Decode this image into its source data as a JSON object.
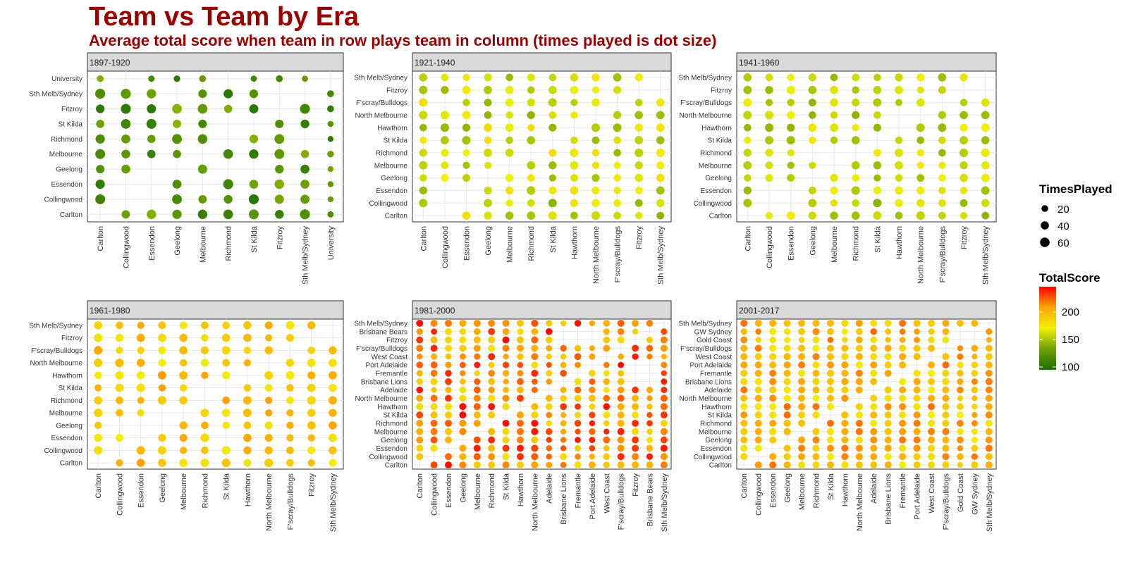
{
  "title": "Team vs Team by Era",
  "subtitle": "Average total score when team in row plays team in column (times played is dot size)",
  "legend": {
    "size_title": "TimesPlayed",
    "size_labels": [
      "20",
      "40",
      "60"
    ],
    "color_title": "TotalScore",
    "color_labels": [
      "200",
      "150",
      "100"
    ],
    "color_stops": [
      "#1a6f00",
      "#6da000",
      "#f0f000",
      "#ffa500",
      "#ff0000"
    ]
  },
  "chart_data": [
    {
      "type": "scatter",
      "panel": "1897-1920",
      "x": [
        "Carlton",
        "Collingwood",
        "Essendon",
        "Geelong",
        "Melbourne",
        "Richmond",
        "St Kilda",
        "Fitzroy",
        "Sth Melb/Sydney",
        "University"
      ],
      "y": [
        "Carlton",
        "Collingwood",
        "Essendon",
        "Geelong",
        "Melbourne",
        "Richmond",
        "St Kilda",
        "Fitzroy",
        "Sth Melb/Sydney",
        "University"
      ],
      "score_base": 112,
      "size_base": 50,
      "missing": [
        [
          0,
          0
        ],
        [
          1,
          1
        ],
        [
          2,
          2
        ],
        [
          3,
          3
        ],
        [
          4,
          4
        ],
        [
          5,
          5
        ],
        [
          6,
          6
        ],
        [
          7,
          7
        ],
        [
          8,
          8
        ],
        [
          9,
          9
        ],
        [
          1,
          2
        ],
        [
          2,
          3
        ],
        [
          5,
          6
        ],
        [
          5,
          3
        ],
        [
          5,
          9
        ],
        [
          1,
          9
        ],
        [
          6,
          3
        ],
        [
          8,
          5
        ],
        [
          4,
          2
        ],
        [
          3,
          8
        ],
        [
          7,
          8
        ],
        [
          2,
          1
        ]
      ],
      "small_cols": [
        9
      ],
      "small_rows": [
        9
      ],
      "color_range": [
        105,
        140
      ]
    },
    {
      "type": "scatter",
      "panel": "1921-1940",
      "x": [
        "Carlton",
        "Collingwood",
        "Essendon",
        "Geelong",
        "Melbourne",
        "Richmond",
        "St Kilda",
        "Hawthorn",
        "North Melbourne",
        "F'scray/Bulldogs",
        "Fitzroy",
        "Sth Melb/Sydney"
      ],
      "y": [
        "Carlton",
        "Collingwood",
        "Essendon",
        "Geelong",
        "Melbourne",
        "Richmond",
        "St Kilda",
        "Hawthorn",
        "North Melbourne",
        "F'scray/Bulldogs",
        "Fitzroy",
        "Sth Melb/Sydney"
      ],
      "score_base": 160,
      "size_base": 30,
      "missing": [
        [
          0,
          0
        ],
        [
          1,
          1
        ],
        [
          2,
          2
        ],
        [
          3,
          3
        ],
        [
          4,
          4
        ],
        [
          5,
          5
        ],
        [
          6,
          6
        ],
        [
          7,
          7
        ],
        [
          8,
          8
        ],
        [
          9,
          9
        ],
        [
          10,
          10
        ],
        [
          11,
          11
        ],
        [
          11,
          10
        ],
        [
          1,
          9
        ],
        [
          1,
          0
        ],
        [
          1,
          2
        ],
        [
          2,
          1
        ]
      ],
      "small_cols": [],
      "small_rows": [],
      "color_range": [
        140,
        175
      ]
    },
    {
      "type": "scatter",
      "panel": "1941-1960",
      "x": [
        "Carlton",
        "Collingwood",
        "Essendon",
        "Geelong",
        "Melbourne",
        "Richmond",
        "St Kilda",
        "Hawthorn",
        "North Melbourne",
        "F'scray/Bulldogs",
        "Fitzroy",
        "Sth Melb/Sydney"
      ],
      "y": [
        "Carlton",
        "Collingwood",
        "Essendon",
        "Geelong",
        "Melbourne",
        "Richmond",
        "St Kilda",
        "Hawthorn",
        "North Melbourne",
        "F'scray/Bulldogs",
        "Fitzroy",
        "Sth Melb/Sydney"
      ],
      "score_base": 160,
      "size_base": 30,
      "missing": [
        [
          0,
          0
        ],
        [
          1,
          1
        ],
        [
          2,
          2
        ],
        [
          3,
          3
        ],
        [
          4,
          4
        ],
        [
          5,
          5
        ],
        [
          6,
          6
        ],
        [
          7,
          7
        ],
        [
          8,
          8
        ],
        [
          9,
          9
        ],
        [
          10,
          10
        ],
        [
          11,
          11
        ],
        [
          11,
          10
        ],
        [
          4,
          5
        ],
        [
          1,
          2
        ],
        [
          2,
          1
        ],
        [
          3,
          5
        ],
        [
          7,
          8
        ]
      ],
      "small_cols": [],
      "small_rows": [],
      "color_range": [
        140,
        170
      ]
    },
    {
      "type": "scatter",
      "panel": "1961-1980",
      "x": [
        "Carlton",
        "Collingwood",
        "Essendon",
        "Geelong",
        "Melbourne",
        "Richmond",
        "St Kilda",
        "Hawthorn",
        "North Melbourne",
        "F'scray/Bulldogs",
        "Fitzroy",
        "Sth Melb/Sydney"
      ],
      "y": [
        "Carlton",
        "Collingwood",
        "Essendon",
        "Geelong",
        "Melbourne",
        "Richmond",
        "St Kilda",
        "Hawthorn",
        "North Melbourne",
        "F'scray/Bulldogs",
        "Fitzroy",
        "Sth Melb/Sydney"
      ],
      "score_base": 185,
      "size_base": 30,
      "missing": [
        [
          0,
          0
        ],
        [
          1,
          1
        ],
        [
          2,
          2
        ],
        [
          3,
          3
        ],
        [
          4,
          4
        ],
        [
          5,
          5
        ],
        [
          6,
          6
        ],
        [
          7,
          7
        ],
        [
          8,
          8
        ],
        [
          9,
          9
        ],
        [
          10,
          10
        ],
        [
          11,
          11
        ],
        [
          11,
          10
        ],
        [
          1,
          3
        ],
        [
          2,
          3
        ],
        [
          5,
          6
        ],
        [
          3,
          4
        ],
        [
          6,
          2
        ]
      ],
      "small_cols": [],
      "small_rows": [],
      "color_range": [
        165,
        200
      ]
    },
    {
      "type": "scatter",
      "panel": "1981-2000",
      "x": [
        "Carlton",
        "Collingwood",
        "Essendon",
        "Geelong",
        "Melbourne",
        "Richmond",
        "St Kilda",
        "Hawthorn",
        "North Melbourne",
        "Adelaide",
        "Brisbane Lions",
        "Fremantle",
        "Port Adelaide",
        "West Coast",
        "F'scray/Bulldogs",
        "Fitzroy",
        "Brisbane Bears",
        "Sth Melb/Sydney"
      ],
      "y": [
        "Carlton",
        "Collingwood",
        "Essendon",
        "Geelong",
        "Melbourne",
        "Richmond",
        "St Kilda",
        "Hawthorn",
        "North Melbourne",
        "Adelaide",
        "Brisbane Lions",
        "Fremantle",
        "Port Adelaide",
        "West Coast",
        "F'scray/Bulldogs",
        "Fitzroy",
        "Brisbane Bears",
        "Sth Melb/Sydney"
      ],
      "score_base": 200,
      "size_base": 40,
      "missing": [
        [
          0,
          0
        ],
        [
          1,
          1
        ],
        [
          2,
          2
        ],
        [
          3,
          3
        ],
        [
          4,
          4
        ],
        [
          5,
          5
        ],
        [
          6,
          6
        ],
        [
          7,
          7
        ],
        [
          8,
          8
        ],
        [
          9,
          9
        ],
        [
          10,
          10
        ],
        [
          11,
          11
        ],
        [
          12,
          12
        ],
        [
          13,
          13
        ],
        [
          14,
          14
        ],
        [
          15,
          15
        ],
        [
          16,
          16
        ],
        [
          17,
          17
        ],
        [
          10,
          15
        ],
        [
          10,
          16
        ],
        [
          15,
          10
        ],
        [
          16,
          10
        ],
        [
          12,
          15
        ],
        [
          12,
          16
        ],
        [
          11,
          15
        ],
        [
          11,
          16
        ],
        [
          15,
          12
        ],
        [
          16,
          12
        ],
        [
          15,
          11
        ],
        [
          16,
          11
        ]
      ],
      "small_cols": [
        9,
        10,
        11,
        12,
        13,
        16
      ],
      "small_rows": [
        9,
        10,
        11,
        12,
        13,
        16
      ],
      "color_range": [
        170,
        230
      ]
    },
    {
      "type": "scatter",
      "panel": "2001-2017",
      "x": [
        "Carlton",
        "Collingwood",
        "Essendon",
        "Geelong",
        "Melbourne",
        "Richmond",
        "St Kilda",
        "Hawthorn",
        "North Melbourne",
        "Adelaide",
        "Brisbane Lions",
        "Fremantle",
        "Port Adelaide",
        "West Coast",
        "F'scray/Bulldogs",
        "Gold Coast",
        "GW Sydney",
        "Sth Melb/Sydney"
      ],
      "y": [
        "Carlton",
        "Collingwood",
        "Essendon",
        "Geelong",
        "Melbourne",
        "Richmond",
        "St Kilda",
        "Hawthorn",
        "North Melbourne",
        "Adelaide",
        "Brisbane Lions",
        "Fremantle",
        "Port Adelaide",
        "West Coast",
        "F'scray/Bulldogs",
        "Gold Coast",
        "GW Sydney",
        "Sth Melb/Sydney"
      ],
      "score_base": 185,
      "size_base": 30,
      "missing": [
        [
          0,
          0
        ],
        [
          1,
          1
        ],
        [
          2,
          2
        ],
        [
          3,
          3
        ],
        [
          4,
          4
        ],
        [
          5,
          5
        ],
        [
          6,
          6
        ],
        [
          7,
          7
        ],
        [
          8,
          8
        ],
        [
          9,
          9
        ],
        [
          10,
          10
        ],
        [
          11,
          11
        ],
        [
          12,
          12
        ],
        [
          13,
          13
        ],
        [
          14,
          14
        ],
        [
          15,
          15
        ],
        [
          16,
          16
        ],
        [
          17,
          17
        ],
        [
          15,
          16
        ],
        [
          16,
          15
        ]
      ],
      "small_cols": [
        15,
        16
      ],
      "small_rows": [
        15,
        16
      ],
      "color_range": [
        165,
        210
      ]
    }
  ]
}
